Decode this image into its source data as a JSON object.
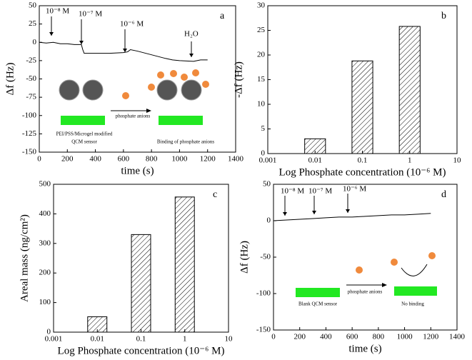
{
  "chart_data": [
    {
      "type": "line",
      "label": "a",
      "xlabel": "time (s)",
      "ylabel": "Δf (Hz)",
      "xlim": [
        0,
        1400
      ],
      "xticks": [
        0,
        200,
        400,
        600,
        800,
        1000,
        1200,
        1400
      ],
      "ylim": [
        -150,
        50
      ],
      "yticks": [
        -150,
        -125,
        -100,
        -75,
        -50,
        -25,
        0,
        25,
        50
      ],
      "x": [
        0,
        50,
        100,
        150,
        200,
        250,
        300,
        310,
        320,
        400,
        500,
        600,
        630,
        650,
        700,
        800,
        900,
        950,
        1000,
        1100,
        1150,
        1200
      ],
      "values": [
        0,
        -1,
        0,
        -2,
        -2,
        -3,
        -3,
        -10,
        -15,
        -15,
        -15,
        -14,
        -13,
        -10,
        -12,
        -17,
        -22,
        -24,
        -25,
        -26,
        -24,
        -24
      ],
      "color": "#000000",
      "annotations": [
        "10⁻⁸ M",
        "10⁻⁷ M",
        "10⁻⁶ M",
        "H₂O"
      ],
      "inset": [
        "PEI/PSS/Microgel modified",
        "QCM sensor",
        "phosphate anions",
        "Binding of phosphate anions"
      ]
    },
    {
      "type": "bar",
      "label": "b",
      "xlabel": "Log Phosphate concentration (10⁻⁶ M)",
      "ylabel": "-Δf (Hz)",
      "xlog": true,
      "xlim": [
        0.001,
        10
      ],
      "xticks": [
        0.001,
        0.01,
        0.1,
        1,
        10
      ],
      "ylim": [
        0,
        30
      ],
      "yticks": [
        0,
        5,
        10,
        15,
        20,
        25,
        30
      ],
      "x": [
        0.01,
        0.1,
        1
      ],
      "values": [
        3,
        18.8,
        25.8
      ],
      "color": "#000000"
    },
    {
      "type": "bar",
      "label": "c",
      "xlabel": "Log Phosphate concentration (10⁻⁶ M)",
      "ylabel": "Areal mass (ng/cm²)",
      "xlog": true,
      "xlim": [
        0.001,
        10
      ],
      "xticks": [
        0.001,
        0.01,
        0.1,
        1,
        10
      ],
      "ylim": [
        0,
        500
      ],
      "yticks": [
        0,
        100,
        200,
        300,
        400,
        500
      ],
      "x": [
        0.01,
        0.1,
        1
      ],
      "values": [
        52,
        330,
        457
      ],
      "color": "#000000"
    },
    {
      "type": "line",
      "label": "d",
      "xlabel": "time (s)",
      "ylabel": "Δf (Hz)",
      "xlim": [
        0,
        1400
      ],
      "xticks": [
        0,
        200,
        400,
        600,
        800,
        1000,
        1200,
        1400
      ],
      "ylim": [
        -150,
        50
      ],
      "yticks": [
        -150,
        -100,
        -50,
        0,
        50
      ],
      "x": [
        0,
        100,
        200,
        300,
        400,
        500,
        600,
        700,
        800,
        900,
        1000,
        1100,
        1200
      ],
      "values": [
        0,
        1,
        2,
        3,
        4,
        5,
        5,
        6,
        7,
        8,
        8,
        9,
        10
      ],
      "color": "#000000",
      "annotations": [
        "10⁻⁸ M",
        "10⁻⁷ M",
        "10⁻⁶ M"
      ],
      "inset": [
        "Blank QCM sensor",
        "phosphate anions",
        "No binding"
      ]
    }
  ]
}
